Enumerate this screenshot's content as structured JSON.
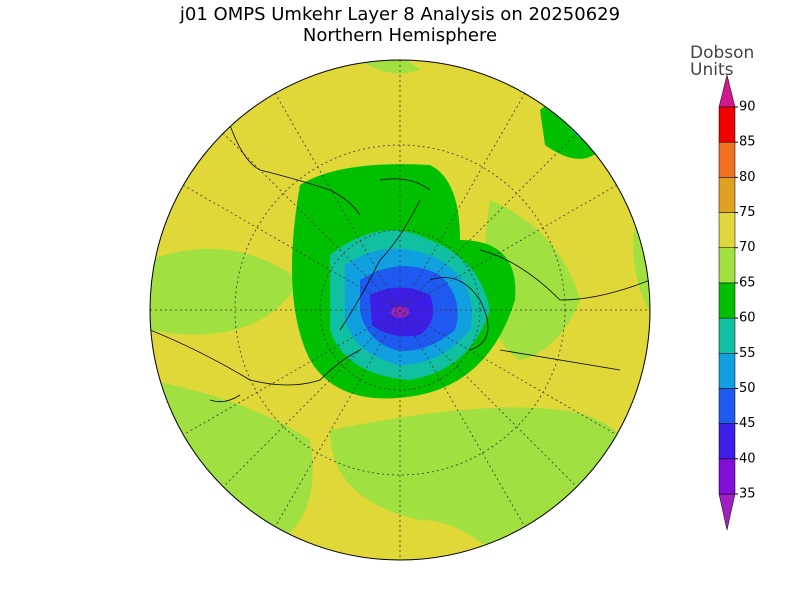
{
  "title": "j01 OMPS Umkehr Layer 8 Analysis on 20250629",
  "subtitle": "Northern Hemisphere",
  "colorbar": {
    "label_lines": [
      "Dobson",
      "Units"
    ],
    "ticks": [
      35,
      40,
      45,
      50,
      55,
      60,
      65,
      70,
      75,
      80,
      85,
      90
    ],
    "under_color": "#a020c0",
    "band_colors": [
      "#8010d8",
      "#3c1ee8",
      "#1e5af0",
      "#10a0e0",
      "#10c0a0",
      "#00c000",
      "#a0e040",
      "#e0d838",
      "#e0a020",
      "#f07020",
      "#f00000"
    ],
    "over_color": "#d01890"
  }
}
